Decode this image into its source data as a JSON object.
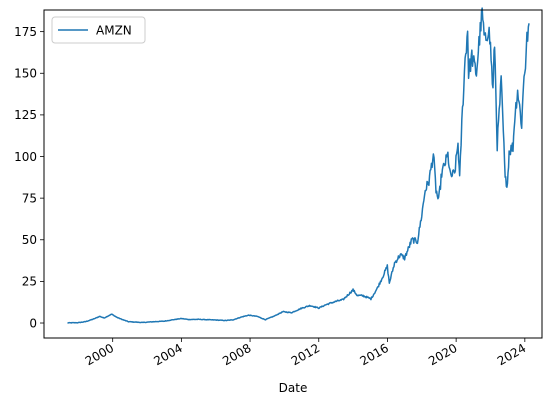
{
  "chart_data": {
    "type": "line",
    "title": "",
    "xlabel": "Date",
    "ylabel": "",
    "x_ticks": [
      "2000",
      "2004",
      "2008",
      "2012",
      "2016",
      "2020",
      "2024"
    ],
    "y_ticks": [
      0,
      25,
      50,
      75,
      100,
      125,
      150,
      175
    ],
    "xlim": [
      "1996-01-01",
      "2025-01-01"
    ],
    "ylim": [
      -9,
      188
    ],
    "grid": false,
    "legend": "top-left",
    "series": [
      {
        "name": "AMZN",
        "color": "#1f77b4",
        "x": [
          "1997-05-15",
          "1998-01-01",
          "1998-06-01",
          "1998-12-01",
          "1999-04-01",
          "1999-07-01",
          "1999-12-10",
          "2000-04-01",
          "2000-08-01",
          "2000-12-01",
          "2001-04-01",
          "2001-09-27",
          "2002-06-01",
          "2003-01-01",
          "2003-06-01",
          "2004-01-01",
          "2004-06-01",
          "2005-01-01",
          "2006-01-01",
          "2006-08-01",
          "2007-01-01",
          "2007-07-01",
          "2007-12-01",
          "2008-06-01",
          "2008-11-20",
          "2009-06-01",
          "2009-12-01",
          "2010-06-01",
          "2011-01-01",
          "2011-07-01",
          "2012-01-01",
          "2012-06-01",
          "2013-01-01",
          "2013-06-01",
          "2013-12-31",
          "2014-04-01",
          "2014-08-01",
          "2015-01-15",
          "2015-06-01",
          "2015-09-01",
          "2015-12-29",
          "2016-02-10",
          "2016-06-01",
          "2016-10-01",
          "2017-01-01",
          "2017-06-05",
          "2017-10-01",
          "2018-01-01",
          "2018-03-15",
          "2018-06-01",
          "2018-09-04",
          "2018-10-30",
          "2018-12-24",
          "2019-03-01",
          "2019-07-10",
          "2019-09-01",
          "2019-12-01",
          "2020-02-10",
          "2020-03-16",
          "2020-05-01",
          "2020-07-10",
          "2020-09-02",
          "2020-09-22",
          "2020-12-01",
          "2021-03-08",
          "2021-05-01",
          "2021-07-08",
          "2021-09-01",
          "2021-11-19",
          "2022-01-01",
          "2022-02-23",
          "2022-03-29",
          "2022-05-24",
          "2022-08-16",
          "2022-10-01",
          "2022-11-09",
          "2022-12-28",
          "2023-02-01",
          "2023-04-25",
          "2023-06-01",
          "2023-08-01",
          "2023-10-26",
          "2023-12-15",
          "2024-01-15",
          "2024-02-15",
          "2024-03-31"
        ],
        "values": [
          0.1,
          0.2,
          0.8,
          2.5,
          4.0,
          3.0,
          5.3,
          3.4,
          2.0,
          0.8,
          0.6,
          0.3,
          0.8,
          1.1,
          1.8,
          2.7,
          2.1,
          2.2,
          1.8,
          1.5,
          1.9,
          3.6,
          4.7,
          4.0,
          2.0,
          4.2,
          6.8,
          6.2,
          8.9,
          10.5,
          9.0,
          11.0,
          13.0,
          14.0,
          19.9,
          16.5,
          16.4,
          14.5,
          21.0,
          26.5,
          34.0,
          24.0,
          36.0,
          41.0,
          39.0,
          50.0,
          49.0,
          65.0,
          80.0,
          85.0,
          101.5,
          80.0,
          73.0,
          90.0,
          101.0,
          88.0,
          90.0,
          108.0,
          86.0,
          120.0,
          158.0,
          176.0,
          150.0,
          160.0,
          150.0,
          168.0,
          186.0,
          168.0,
          178.0,
          166.0,
          139.0,
          169.0,
          107.0,
          145.0,
          115.0,
          86.0,
          84.0,
          103.0,
          106.0,
          124.0,
          140.0,
          119.0,
          150.0,
          155.0,
          170.0,
          180.0
        ]
      }
    ]
  }
}
